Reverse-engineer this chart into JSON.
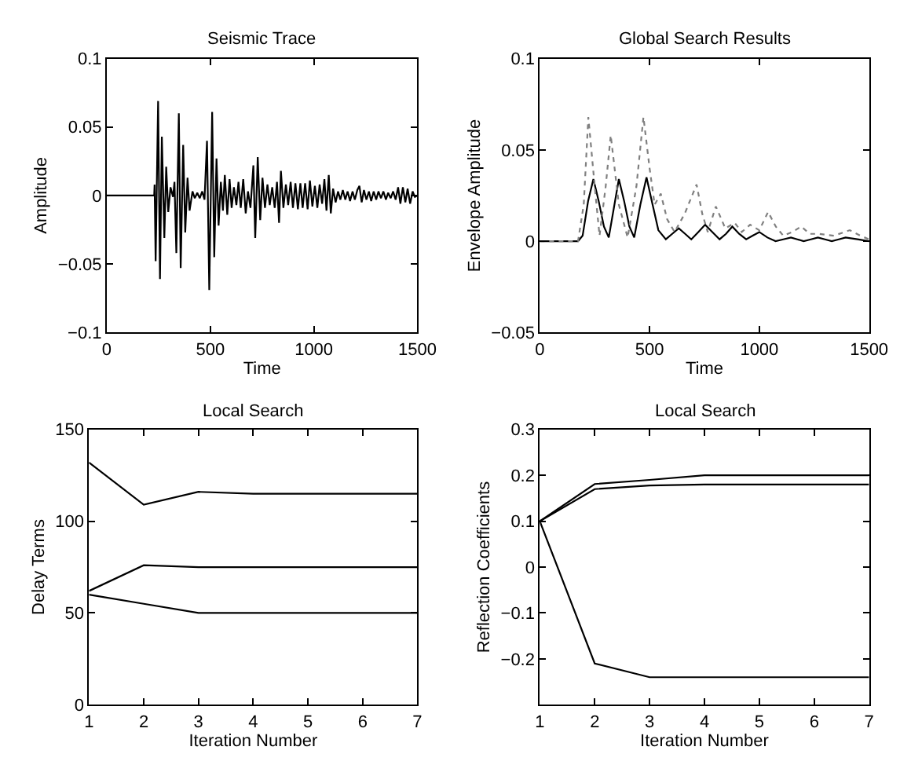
{
  "chart_data": [
    {
      "type": "line",
      "title": "Seismic Trace",
      "xlabel": "Time",
      "ylabel": "Amplitude",
      "xlim": [
        0,
        1500
      ],
      "xticks": [
        0,
        500,
        1000,
        1500
      ],
      "ylim": [
        -0.1,
        0.1
      ],
      "yticks": [
        -0.1,
        -0.05,
        0,
        0.05,
        0.1
      ],
      "series": [
        {
          "color": "#000000",
          "line_style": "solid",
          "x": [
            0,
            229,
            231,
            236,
            248,
            257,
            266,
            278,
            287,
            297,
            308,
            320,
            327,
            336,
            348,
            357,
            369,
            379,
            390,
            400,
            414,
            425,
            437,
            449,
            461,
            472,
            484,
            495,
            509,
            519,
            530,
            540,
            551,
            561,
            570,
            582,
            593,
            603,
            614,
            626,
            636,
            647,
            659,
            671,
            682,
            694,
            708,
            717,
            729,
            741,
            752,
            764,
            776,
            787,
            799,
            811,
            822,
            832,
            841,
            853,
            865,
            876,
            888,
            899,
            911,
            923,
            935,
            946,
            958,
            970,
            981,
            993,
            1005,
            1017,
            1028,
            1040,
            1051,
            1061,
            1072,
            1082,
            1093,
            1105,
            1117,
            1128,
            1140,
            1152,
            1163,
            1175,
            1187,
            1198,
            1210,
            1220,
            1231,
            1242,
            1254,
            1266,
            1277,
            1289,
            1301,
            1312,
            1324,
            1336,
            1348,
            1359,
            1371,
            1383,
            1395,
            1407,
            1418,
            1430,
            1442,
            1453,
            1465,
            1477,
            1488,
            1500
          ],
          "values": [
            0,
            0,
            0.008,
            -0.048,
            0.069,
            -0.061,
            0.043,
            -0.031,
            0.021,
            -0.012,
            0.006,
            -0.001,
            0.01,
            -0.042,
            0.06,
            -0.053,
            0.037,
            -0.027,
            0.013,
            -0.011,
            0.003,
            -0.002,
            0.002,
            -0.002,
            0.003,
            -0.003,
            0.04,
            -0.069,
            0.061,
            -0.045,
            0.027,
            -0.022,
            0.01,
            -0.011,
            0.015,
            -0.014,
            0.012,
            -0.009,
            0.006,
            -0.007,
            0.01,
            -0.009,
            0.012,
            -0.013,
            0.003,
            -0.009,
            0.022,
            -0.031,
            0.028,
            -0.018,
            0.013,
            -0.009,
            0.008,
            -0.007,
            0.006,
            -0.009,
            0.01,
            -0.02,
            0.018,
            -0.009,
            0.008,
            -0.007,
            0.01,
            -0.009,
            0.009,
            -0.01,
            0.009,
            -0.009,
            0.009,
            -0.01,
            0.011,
            -0.008,
            0.007,
            -0.009,
            0.008,
            -0.006,
            0.012,
            -0.011,
            0.015,
            -0.013,
            0.005,
            -0.005,
            0.003,
            -0.003,
            0.004,
            -0.003,
            0.003,
            -0.004,
            0.003,
            -0.003,
            0.004,
            0.007,
            -0.005,
            0.004,
            -0.003,
            0.003,
            -0.004,
            0.003,
            -0.003,
            0.003,
            -0.002,
            0.003,
            -0.003,
            0.002,
            -0.002,
            0.003,
            -0.003,
            0.006,
            -0.006,
            0.006,
            -0.005,
            0.005,
            -0.006,
            0.003,
            -0.001,
            0
          ]
        }
      ]
    },
    {
      "type": "line",
      "title": "Global Search Results",
      "xlabel": "Time",
      "ylabel": "Envelope Amplitude",
      "xlim": [
        0,
        1500
      ],
      "xticks": [
        0,
        500,
        1000,
        1500
      ],
      "ylim": [
        -0.05,
        0.1
      ],
      "yticks": [
        -0.05,
        0,
        0.05,
        0.1
      ],
      "series": [
        {
          "color": "#000000",
          "line_style": "solid",
          "x": [
            0,
            174,
            195,
            220,
            244,
            268,
            292,
            314,
            337,
            360,
            384,
            408,
            430,
            458,
            486,
            510,
            540,
            574,
            603,
            633,
            662,
            690,
            722,
            753,
            786,
            819,
            848,
            877,
            908,
            940,
            970,
            1000,
            1037,
            1074,
            1109,
            1144,
            1173,
            1202,
            1235,
            1267,
            1299,
            1330,
            1362,
            1393,
            1447,
            1500
          ],
          "values": [
            0,
            0,
            0.003,
            0.022,
            0.034,
            0.022,
            0.008,
            0.002,
            0.018,
            0.034,
            0.022,
            0.008,
            0.002,
            0.02,
            0.035,
            0.022,
            0.006,
            0.001,
            0.004,
            0.007,
            0.004,
            0.001,
            0.005,
            0.009,
            0.005,
            0.001,
            0.004,
            0.008,
            0.004,
            0.001,
            0.003,
            0.005,
            0.002,
            0,
            0.001,
            0.002,
            0.001,
            0,
            0.001,
            0.002,
            0.001,
            0,
            0.001,
            0.002,
            0.001,
            0
          ]
        },
        {
          "color": "#808080",
          "line_style": "dotted",
          "x": [
            0,
            174,
            200,
            221,
            250,
            272,
            300,
            323,
            360,
            400,
            440,
            472,
            500,
            523,
            551,
            580,
            614,
            660,
            714,
            740,
            765,
            802,
            845,
            888,
            920,
            958,
            1000,
            1040,
            1075,
            1109,
            1150,
            1191,
            1230,
            1272,
            1340,
            1412,
            1460,
            1500
          ],
          "values": [
            0,
            0,
            0.02,
            0.068,
            0.03,
            0.003,
            0.03,
            0.058,
            0.02,
            0.002,
            0.03,
            0.068,
            0.04,
            0.02,
            0.026,
            0.012,
            0.005,
            0.015,
            0.031,
            0.015,
            0.005,
            0.019,
            0.007,
            0.01,
            0.005,
            0.009,
            0.006,
            0.016,
            0.008,
            0.003,
            0.005,
            0.008,
            0.004,
            0.004,
            0.003,
            0.006,
            0.003,
            0.001
          ]
        }
      ]
    },
    {
      "type": "line",
      "title": "Local Search",
      "xlabel": "Iteration Number",
      "ylabel": "Delay Terms",
      "xlim": [
        1,
        7
      ],
      "xticks": [
        1,
        2,
        3,
        4,
        5,
        6,
        7
      ],
      "ylim": [
        0,
        150
      ],
      "yticks": [
        0,
        50,
        100,
        150
      ],
      "x": [
        1,
        2,
        3,
        4,
        5,
        6,
        7
      ],
      "series": [
        {
          "color": "#000000",
          "line_style": "solid",
          "values": [
            132,
            109,
            116,
            115,
            115,
            115,
            115
          ]
        },
        {
          "color": "#000000",
          "line_style": "solid",
          "values": [
            62,
            76,
            75,
            75,
            75,
            75,
            75
          ]
        },
        {
          "color": "#000000",
          "line_style": "solid",
          "values": [
            60,
            55,
            50,
            50,
            50,
            50,
            50
          ]
        }
      ]
    },
    {
      "type": "line",
      "title": "Local Search",
      "xlabel": "Iteration Number",
      "ylabel": "Reflection Coefficients",
      "xlim": [
        1,
        7
      ],
      "xticks": [
        1,
        2,
        3,
        4,
        5,
        6,
        7
      ],
      "ylim": [
        -0.3,
        0.3
      ],
      "yticks": [
        -0.2,
        -0.1,
        0,
        0.1,
        0.2,
        0.3
      ],
      "x": [
        1,
        2,
        3,
        4,
        5,
        6,
        7
      ],
      "series": [
        {
          "color": "#000000",
          "line_style": "solid",
          "values": [
            0.1,
            0.181,
            0.19,
            0.2,
            0.2,
            0.2,
            0.2
          ]
        },
        {
          "color": "#000000",
          "line_style": "solid",
          "values": [
            0.1,
            0.17,
            0.178,
            0.18,
            0.18,
            0.18,
            0.18
          ]
        },
        {
          "color": "#000000",
          "line_style": "solid",
          "values": [
            0.1,
            -0.21,
            -0.24,
            -0.24,
            -0.24,
            -0.24,
            -0.24
          ]
        }
      ]
    }
  ]
}
